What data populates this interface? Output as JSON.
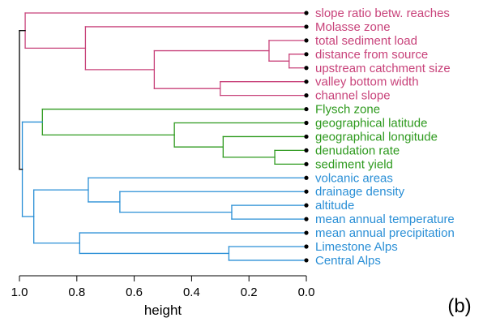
{
  "chart_data": {
    "type": "dendrogram",
    "orientation": "horizontal",
    "xlabel": "height",
    "xlim": [
      1.0,
      0.0
    ],
    "ticks": [
      "1.0",
      "0.8",
      "0.6",
      "0.4",
      "0.2",
      "0.0"
    ],
    "tick_values": [
      1.0,
      0.8,
      0.6,
      0.4,
      0.2,
      0.0
    ],
    "panel_label": "(b)",
    "colors": {
      "magenta": "#c8427a",
      "green": "#2e9a1e",
      "blue": "#2a8fd6",
      "root": "#000000"
    },
    "leaves": [
      {
        "label": "slope ratio betw. reaches",
        "color": "magenta"
      },
      {
        "label": "Molasse zone",
        "color": "magenta"
      },
      {
        "label": "total sediment load",
        "color": "magenta"
      },
      {
        "label": "distance from source",
        "color": "magenta"
      },
      {
        "label": "upstream catchment size",
        "color": "magenta"
      },
      {
        "label": "valley bottom width",
        "color": "magenta"
      },
      {
        "label": "channel slope",
        "color": "magenta"
      },
      {
        "label": "Flysch zone",
        "color": "green"
      },
      {
        "label": "geographical latitude",
        "color": "green"
      },
      {
        "label": "geographical longitude",
        "color": "green"
      },
      {
        "label": "denudation rate",
        "color": "green"
      },
      {
        "label": "sediment yield",
        "color": "green"
      },
      {
        "label": "volcanic areas",
        "color": "blue"
      },
      {
        "label": "drainage density",
        "color": "blue"
      },
      {
        "label": "altitude",
        "color": "blue"
      },
      {
        "label": "mean annual temperature",
        "color": "blue"
      },
      {
        "label": "mean annual precipitation",
        "color": "blue"
      },
      {
        "label": "Limestone Alps",
        "color": "blue"
      },
      {
        "label": "Central Alps",
        "color": "blue"
      }
    ],
    "merges": [
      {
        "a": 3,
        "b": 4,
        "height": 0.06,
        "color": "magenta"
      },
      {
        "a": 2,
        "b": -1,
        "height": 0.13,
        "color": "magenta"
      },
      {
        "a": 5,
        "b": 6,
        "height": 0.3,
        "color": "magenta"
      },
      {
        "a": -2,
        "b": -3,
        "height": 0.53,
        "color": "magenta"
      },
      {
        "a": 1,
        "b": -4,
        "height": 0.77,
        "color": "magenta"
      },
      {
        "a": 0,
        "b": -5,
        "height": 0.98,
        "color": "magenta"
      },
      {
        "a": 10,
        "b": 11,
        "height": 0.11,
        "color": "green"
      },
      {
        "a": 9,
        "b": -7,
        "height": 0.29,
        "color": "green"
      },
      {
        "a": 8,
        "b": -8,
        "height": 0.46,
        "color": "green"
      },
      {
        "a": 7,
        "b": -9,
        "height": 0.92,
        "color": "green"
      },
      {
        "a": 14,
        "b": 15,
        "height": 0.26,
        "color": "blue"
      },
      {
        "a": 13,
        "b": -11,
        "height": 0.65,
        "color": "blue"
      },
      {
        "a": 12,
        "b": -12,
        "height": 0.76,
        "color": "blue"
      },
      {
        "a": 17,
        "b": 18,
        "height": 0.27,
        "color": "blue"
      },
      {
        "a": 16,
        "b": -14,
        "height": 0.79,
        "color": "blue"
      },
      {
        "a": -13,
        "b": -15,
        "height": 0.95,
        "color": "blue"
      },
      {
        "a": -10,
        "b": -16,
        "height": 0.99,
        "color": "blue"
      },
      {
        "a": -6,
        "b": -17,
        "height": 1.0,
        "color": "root"
      }
    ]
  }
}
